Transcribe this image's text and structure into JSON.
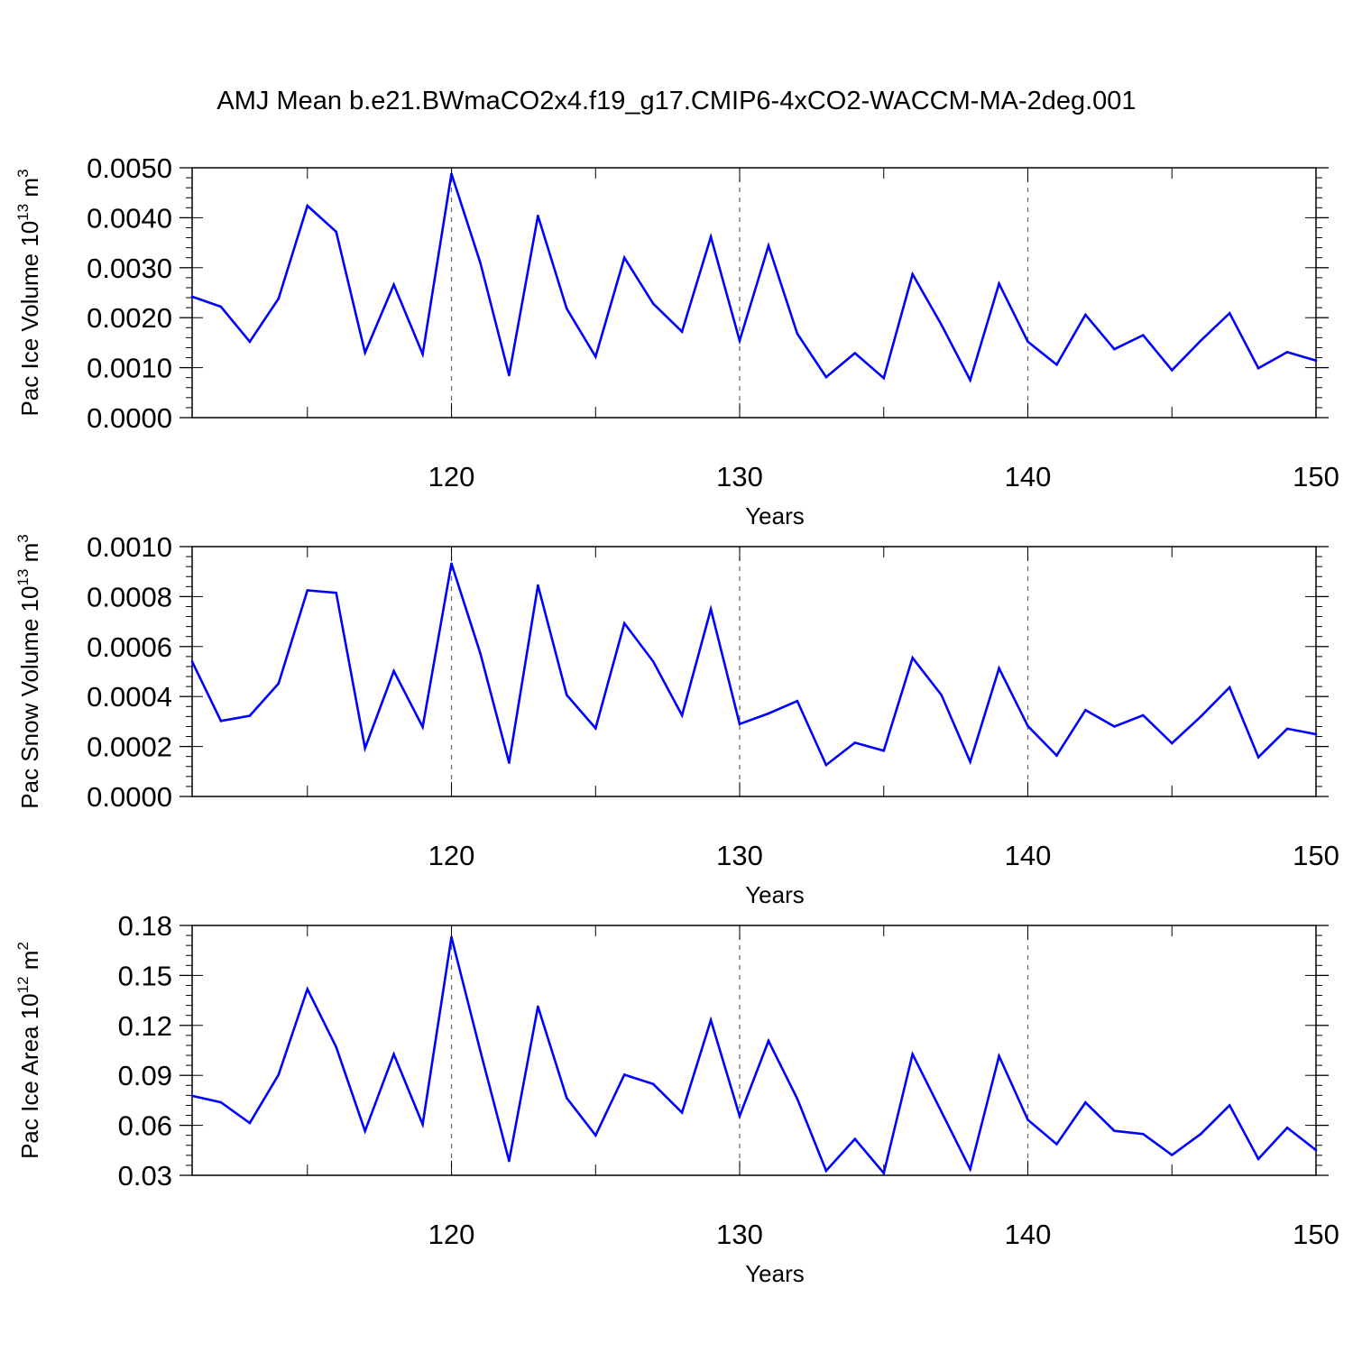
{
  "title": "AMJ Mean b.e21.BWmaCO2x4.f19_g17.CMIP6-4xCO2-WACCM-MA-2deg.001",
  "colors": {
    "series": "#0000ff",
    "axes": "#000000",
    "grid": "#666666"
  },
  "chart_data": [
    {
      "type": "line",
      "ylabel": "Pac Ice Volume 10^13 m^3",
      "ylabel_parts": {
        "base": "Pac Ice Volume 10",
        "exp1": "13",
        "mid": " m",
        "exp2": "3"
      },
      "xlabel": "Years",
      "xlim": [
        111,
        150
      ],
      "ylim": [
        0,
        0.005
      ],
      "xticks": [
        120,
        130,
        140,
        150
      ],
      "xtick_labels": [
        "120",
        "130",
        "140",
        "150"
      ],
      "yticks": [
        0,
        0.001,
        0.002,
        0.003,
        0.004,
        0.005
      ],
      "ytick_labels": [
        "0.0000",
        "0.0010",
        "0.0020",
        "0.0030",
        "0.0040",
        "0.0050"
      ],
      "grid_x": [
        120,
        130,
        140
      ],
      "x": [
        111,
        112,
        113,
        114,
        115,
        116,
        117,
        118,
        119,
        120,
        121,
        122,
        123,
        124,
        125,
        126,
        127,
        128,
        129,
        130,
        131,
        132,
        133,
        134,
        135,
        136,
        137,
        138,
        139,
        140,
        141,
        142,
        143,
        144,
        145,
        146,
        147,
        148,
        149,
        150
      ],
      "values": [
        0.00242,
        0.00222,
        0.00152,
        0.00238,
        0.00424,
        0.00372,
        0.0013,
        0.00266,
        0.00127,
        0.00488,
        0.0031,
        0.00085,
        0.00404,
        0.00218,
        0.00122,
        0.0032,
        0.00228,
        0.00172,
        0.00362,
        0.00154,
        0.00344,
        0.00168,
        0.00081,
        0.00129,
        0.00079,
        0.00287,
        0.00186,
        0.00075,
        0.00268,
        0.00152,
        0.00106,
        0.00206,
        0.00137,
        0.00165,
        0.00095,
        0.00154,
        0.00209,
        0.00099,
        0.00131,
        0.00114
      ]
    },
    {
      "type": "line",
      "ylabel": "Pac Snow Volume 10^13 m^3",
      "ylabel_parts": {
        "base": "Pac Snow Volume 10",
        "exp1": "13",
        "mid": " m",
        "exp2": "3"
      },
      "xlabel": "Years",
      "xlim": [
        111,
        150
      ],
      "ylim": [
        0,
        0.001
      ],
      "xticks": [
        120,
        130,
        140,
        150
      ],
      "xtick_labels": [
        "120",
        "130",
        "140",
        "150"
      ],
      "yticks": [
        0,
        0.0002,
        0.0004,
        0.0006,
        0.0008,
        0.001
      ],
      "ytick_labels": [
        "0.0000",
        "0.0002",
        "0.0004",
        "0.0006",
        "0.0008",
        "0.0010"
      ],
      "grid_x": [
        120,
        130,
        140
      ],
      "x": [
        111,
        112,
        113,
        114,
        115,
        116,
        117,
        118,
        119,
        120,
        121,
        122,
        123,
        124,
        125,
        126,
        127,
        128,
        129,
        130,
        131,
        132,
        133,
        134,
        135,
        136,
        137,
        138,
        139,
        140,
        141,
        142,
        143,
        144,
        145,
        146,
        147,
        148,
        149,
        150
      ],
      "values": [
        0.00054,
        0.000302,
        0.000323,
        0.000452,
        0.000825,
        0.000815,
        0.000193,
        0.000502,
        0.000278,
        0.000932,
        0.000573,
        0.000135,
        0.000845,
        0.000406,
        0.000273,
        0.000693,
        0.00054,
        0.000325,
        0.00075,
        0.00029,
        0.000332,
        0.000382,
        0.000126,
        0.000215,
        0.000183,
        0.000555,
        0.000406,
        0.000139,
        0.000513,
        0.000282,
        0.000164,
        0.000346,
        0.00028,
        0.000325,
        0.000213,
        0.00032,
        0.000437,
        0.000157,
        0.000271,
        0.000249
      ]
    },
    {
      "type": "line",
      "ylabel": "Pac Ice Area 10^12 m^2",
      "ylabel_parts": {
        "base": "Pac Ice Area 10",
        "exp1": "12",
        "mid": " m",
        "exp2": "2"
      },
      "xlabel": "Years",
      "xlim": [
        111,
        150
      ],
      "ylim": [
        0.03,
        0.18
      ],
      "xticks": [
        120,
        130,
        140,
        150
      ],
      "xtick_labels": [
        "120",
        "130",
        "140",
        "150"
      ],
      "yticks": [
        0.03,
        0.06,
        0.09,
        0.12,
        0.15,
        0.18
      ],
      "ytick_labels": [
        "0.03",
        "0.06",
        "0.09",
        "0.12",
        "0.15",
        "0.18"
      ],
      "grid_x": [
        120,
        130,
        140
      ],
      "x": [
        111,
        112,
        113,
        114,
        115,
        116,
        117,
        118,
        119,
        120,
        121,
        122,
        123,
        124,
        125,
        126,
        127,
        128,
        129,
        130,
        131,
        132,
        133,
        134,
        135,
        136,
        137,
        138,
        139,
        140,
        141,
        142,
        143,
        144,
        145,
        146,
        147,
        148,
        149,
        150
      ],
      "values": [
        0.0777,
        0.0738,
        0.0614,
        0.0903,
        0.1418,
        0.107,
        0.0566,
        0.1027,
        0.0606,
        0.173,
        0.1047,
        0.0386,
        0.1313,
        0.0764,
        0.054,
        0.0904,
        0.0848,
        0.0677,
        0.1232,
        0.0656,
        0.1107,
        0.0759,
        0.0327,
        0.0518,
        0.0313,
        0.1027,
        0.0682,
        0.0337,
        0.1016,
        0.0633,
        0.0487,
        0.0737,
        0.0567,
        0.0548,
        0.0422,
        0.0548,
        0.072,
        0.0398,
        0.0586,
        0.0451
      ]
    }
  ]
}
